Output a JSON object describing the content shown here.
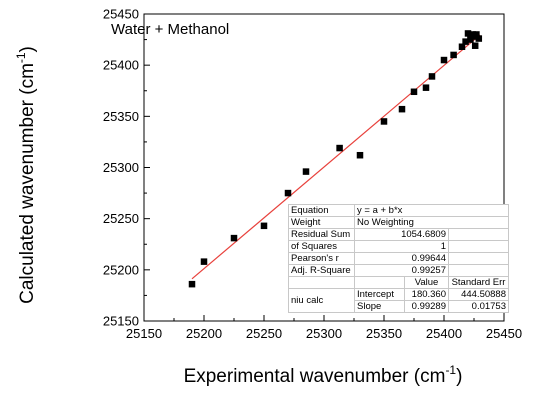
{
  "chart_data": {
    "type": "scatter",
    "annotation": "Water + Methanol",
    "xlabel": "Experimental wavenumber (cm",
    "ylabel": "Calculated wavenumber (cm",
    "label_exponent": "-1",
    "label_close": ")",
    "xlim": [
      25150,
      25450
    ],
    "ylim": [
      25150,
      25450
    ],
    "xticks": [
      25150,
      25200,
      25250,
      25300,
      25350,
      25400,
      25450
    ],
    "yticks": [
      25150,
      25200,
      25250,
      25300,
      25350,
      25400,
      25450
    ],
    "grid": false,
    "marker_color": "#000000",
    "fit_color": "#e8413c",
    "points": [
      [
        25190,
        25186
      ],
      [
        25200,
        25208
      ],
      [
        25225,
        25231
      ],
      [
        25250,
        25243
      ],
      [
        25270,
        25275
      ],
      [
        25285,
        25296
      ],
      [
        25313,
        25319
      ],
      [
        25330,
        25312
      ],
      [
        25350,
        25345
      ],
      [
        25365,
        25357
      ],
      [
        25375,
        25374
      ],
      [
        25385,
        25378
      ],
      [
        25390,
        25389
      ],
      [
        25400,
        25405
      ],
      [
        25408,
        25410
      ],
      [
        25415,
        25418
      ],
      [
        25418,
        25423
      ],
      [
        25420,
        25431
      ],
      [
        25422,
        25425
      ],
      [
        25424,
        25430
      ],
      [
        25425,
        25428
      ],
      [
        25426,
        25419
      ],
      [
        25427,
        25430
      ],
      [
        25429,
        25426
      ]
    ],
    "fit": {
      "intercept": 180.36,
      "slope": 0.99289,
      "x_range": [
        25190,
        25430
      ]
    }
  },
  "stats_table": {
    "equation_label": "Equation",
    "equation_value": "y = a + b*x",
    "weight_label": "Weight",
    "weight_value": "No Weighting",
    "rss_label_1": "Residual Sum",
    "rss_label_2": "of Squares",
    "rss_value_1": "1054.6809",
    "rss_value_2": "1",
    "pearson_label": "Pearson's r",
    "pearson_value": "0.99644",
    "adjr2_label": "Adj. R-Square",
    "adjr2_value": "0.99257",
    "value_header": "Value",
    "stderr_header": "Standard Err",
    "group_label": "niu calc",
    "intercept_label": "Intercept",
    "intercept_value": "180.360",
    "intercept_err": "444.50888",
    "slope_label": "Slope",
    "slope_value": "0.99289",
    "slope_err": "0.01753"
  }
}
